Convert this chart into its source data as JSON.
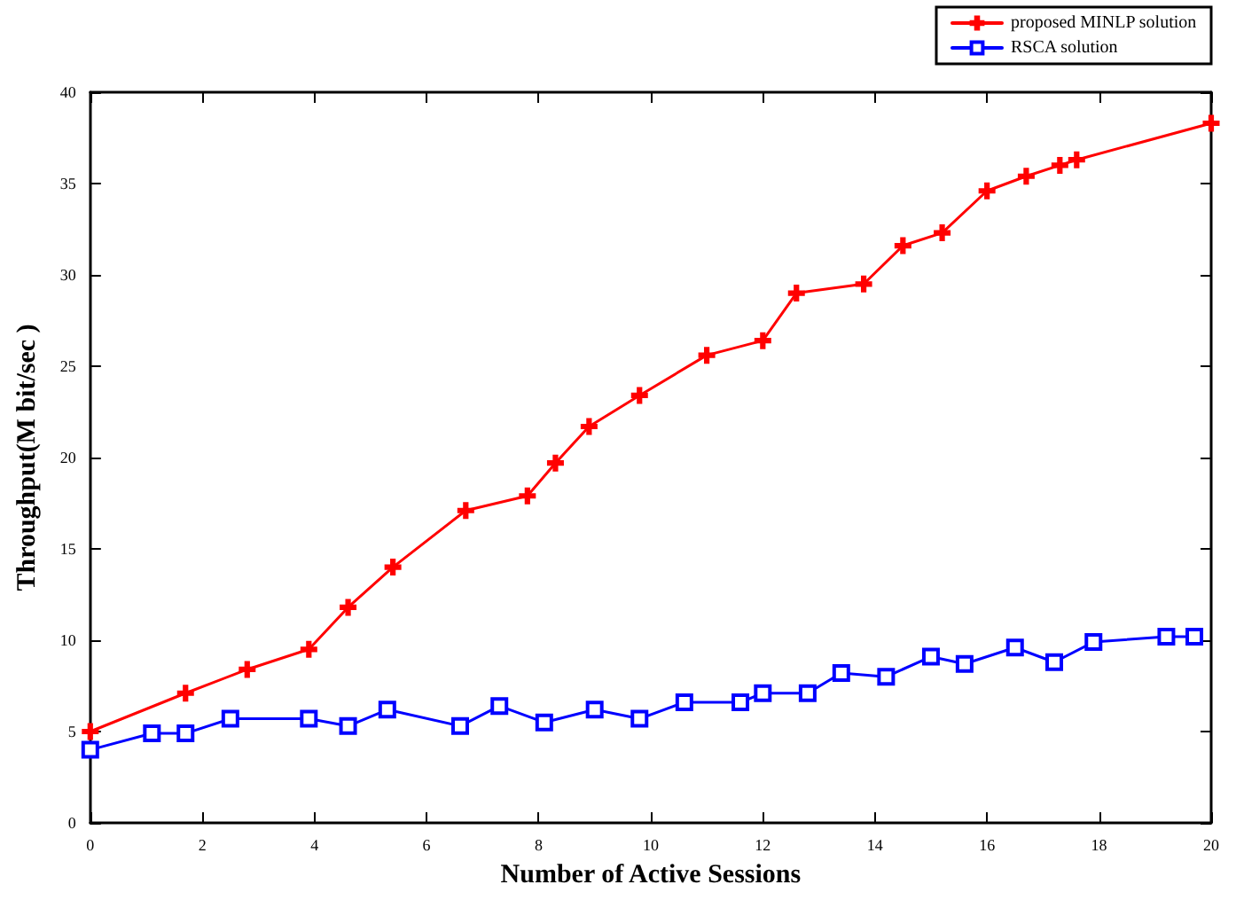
{
  "chart_data": {
    "type": "line",
    "xlabel": "Number of Active Sessions",
    "ylabel": "Throughput(M bit/sec )",
    "xlim": [
      0,
      20
    ],
    "xticks": [
      0,
      2,
      4,
      6,
      8,
      10,
      12,
      14,
      16,
      18,
      20
    ],
    "ylim": [
      0,
      40
    ],
    "yticks": [
      0,
      5,
      10,
      15,
      20,
      25,
      30,
      35,
      40
    ],
    "grid": false,
    "legend": "top right",
    "line_style": "solid",
    "series": [
      {
        "name": "proposed MINLP solution",
        "color": "#ff0000",
        "marker": "cross",
        "x": [
          0,
          1.7,
          2.8,
          3.9,
          4.6,
          5.4,
          6.7,
          7.8,
          8.3,
          8.9,
          9.8,
          11.0,
          12.0,
          12.6,
          13.8,
          14.5,
          15.2,
          16.0,
          16.7,
          17.3,
          17.6,
          20
        ],
        "values": [
          5.0,
          7.1,
          8.4,
          9.5,
          11.8,
          14.0,
          17.1,
          17.9,
          19.7,
          21.7,
          23.4,
          25.6,
          26.4,
          29.0,
          29.5,
          31.6,
          32.3,
          34.6,
          35.4,
          36.0,
          36.3,
          38.3
        ]
      },
      {
        "name": "RSCA solution",
        "color": "#0000ff",
        "marker": "square",
        "x": [
          0,
          1.1,
          1.7,
          2.5,
          3.9,
          4.6,
          5.3,
          6.6,
          7.3,
          8.1,
          9.0,
          9.8,
          10.6,
          11.6,
          12.0,
          12.8,
          13.4,
          14.2,
          15.0,
          15.6,
          16.5,
          17.2,
          17.9,
          19.2,
          19.7
        ],
        "values": [
          4.0,
          4.9,
          4.9,
          5.7,
          5.7,
          5.3,
          6.2,
          5.3,
          6.4,
          5.5,
          6.2,
          5.7,
          6.6,
          6.6,
          7.1,
          7.1,
          8.2,
          8.0,
          9.1,
          8.7,
          9.6,
          8.8,
          9.9,
          10.2,
          10.2
        ]
      }
    ]
  }
}
